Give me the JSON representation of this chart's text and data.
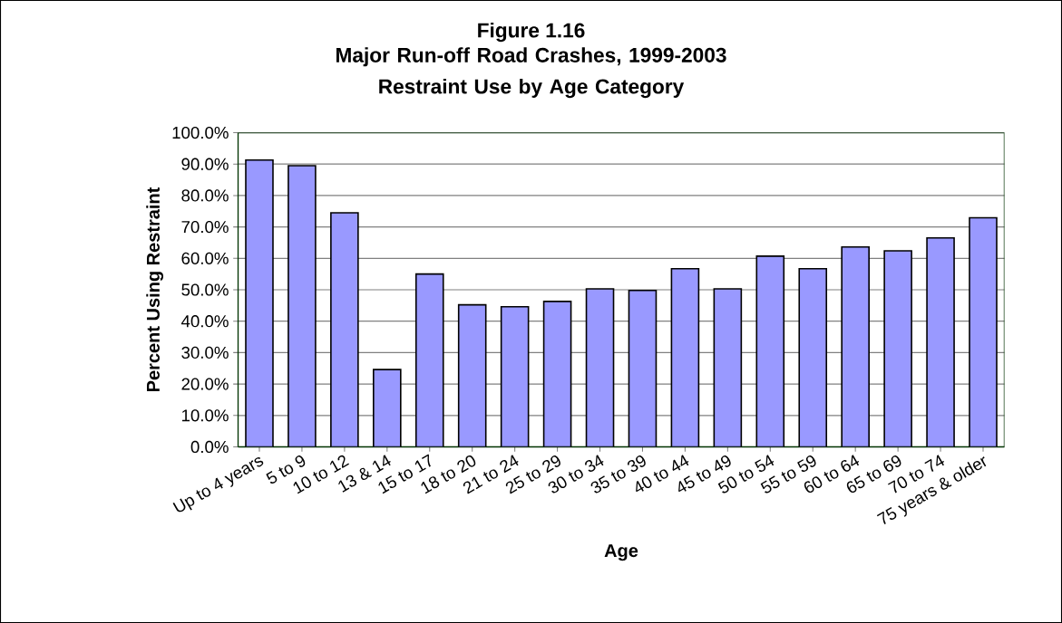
{
  "chart_data": {
    "type": "bar",
    "title": "Figure 1.16",
    "subtitle": "Major Run-off Road Crashes, 1999-2003\nRestraint Use by Age Category",
    "xlabel": "Age",
    "ylabel": "Percent Using Restraint",
    "categories": [
      "Up to 4 years",
      "5 to 9",
      "10 to 12",
      "13 & 14",
      "15 to 17",
      "18 to 20",
      "21 to 24",
      "25 to 29",
      "30 to 34",
      "35 to 39",
      "40 to 44",
      "45 to 49",
      "50 to 54",
      "55 to 59",
      "60 to 64",
      "65 to 69",
      "70 to 74",
      "75 years & older"
    ],
    "values": [
      91.3,
      89.5,
      74.5,
      24.6,
      55.0,
      45.2,
      44.6,
      46.3,
      50.3,
      49.8,
      56.7,
      50.3,
      60.7,
      56.7,
      63.6,
      62.4,
      66.5,
      72.9
    ],
    "color": "#9999ff",
    "ylim": [
      0,
      100
    ],
    "yticks": [
      {
        "value": 0,
        "label": "0.0%"
      },
      {
        "value": 10,
        "label": "10.0%"
      },
      {
        "value": 20,
        "label": "20.0%"
      },
      {
        "value": 30,
        "label": "30.0%"
      },
      {
        "value": 40,
        "label": "40.0%"
      },
      {
        "value": 50,
        "label": "50.0%"
      },
      {
        "value": 60,
        "label": "60.0%"
      },
      {
        "value": 70,
        "label": "70.0%"
      },
      {
        "value": 80,
        "label": "80.0%"
      },
      {
        "value": 90,
        "label": "90.0%"
      },
      {
        "value": 100,
        "label": "100.0%"
      }
    ],
    "grid": "y"
  }
}
